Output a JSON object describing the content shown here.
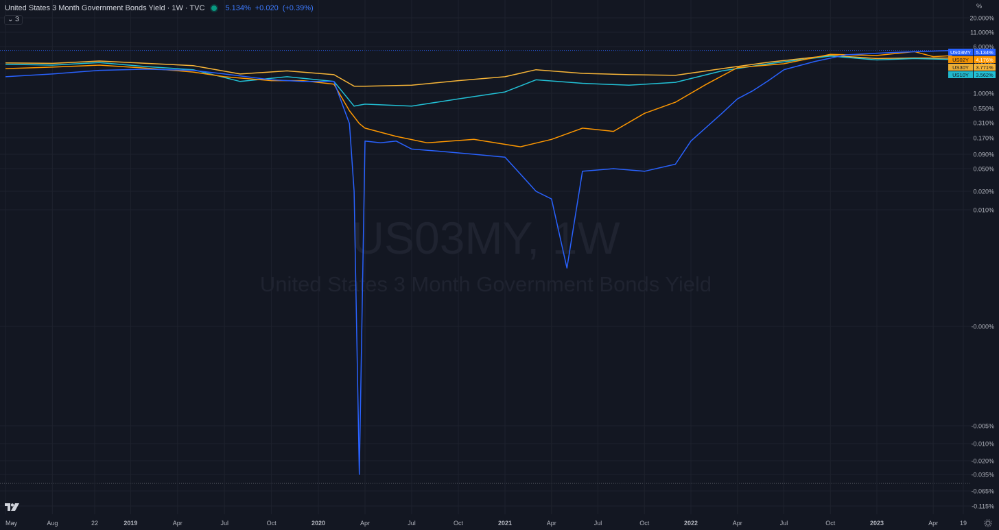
{
  "legend": {
    "title": "United States 3 Month Government Bonds Yield · 1W · TVC",
    "price": "5.134%",
    "change": "+0.020",
    "change_pct": "(+0.39%)",
    "collapse_label": "3"
  },
  "axis_unit": "%",
  "colors": {
    "background": "#131722",
    "grid": "#1e222d",
    "axis_text": "#b2b5be",
    "US03MY": "#2962ff",
    "US02Y": "#ff9800",
    "US30Y": "#f7b538",
    "US10Y": "#22c1d6"
  },
  "chart_data": {
    "type": "line",
    "title": "United States 3 Month Government Bonds Yield",
    "watermark_symbol": "US03MY, 1W",
    "watermark_name": "United States 3 Month Government Bonds Yield",
    "ylabel": "%",
    "y_scale": "log-like",
    "y_ticks": [
      "20.000%",
      "11.000%",
      "6.000%",
      "3.000%",
      "1.000%",
      "0.550%",
      "0.310%",
      "0.170%",
      "0.090%",
      "0.050%",
      "0.020%",
      "0.010%",
      "-0.000%",
      "-0.005%",
      "-0.010%",
      "-0.020%",
      "-0.035%",
      "-0.065%",
      "-0.115%"
    ],
    "x_ticks": [
      "May",
      "Aug",
      "22",
      "2019",
      "Apr",
      "Jul",
      "Oct",
      "2020",
      "Apr",
      "Jul",
      "Oct",
      "2021",
      "Apr",
      "Jul",
      "Oct",
      "2022",
      "Apr",
      "Jul",
      "Oct",
      "2023",
      "Apr",
      "19"
    ],
    "grid": true,
    "series": [
      {
        "name": "US03MY",
        "last": "5.134%",
        "points": [
          [
            "2018-05",
            1.85
          ],
          [
            "2018-08",
            2.05
          ],
          [
            "2018-11",
            2.35
          ],
          [
            "2019-02",
            2.45
          ],
          [
            "2019-05",
            2.35
          ],
          [
            "2019-07",
            2.05
          ],
          [
            "2019-10",
            1.65
          ],
          [
            "2019-12",
            1.55
          ],
          [
            "2020-02",
            1.55
          ],
          [
            "2020-03-01",
            0.3
          ],
          [
            "2020-03-10",
            0.02
          ],
          [
            "2020-03-20",
            -0.035
          ],
          [
            "2020-04-01",
            0.15
          ],
          [
            "2020-05",
            0.14
          ],
          [
            "2020-06",
            0.15
          ],
          [
            "2020-07",
            0.11
          ],
          [
            "2020-09",
            0.1
          ],
          [
            "2020-11",
            0.09
          ],
          [
            "2021-01",
            0.08
          ],
          [
            "2021-02",
            0.04
          ],
          [
            "2021-03",
            0.02
          ],
          [
            "2021-04",
            0.015
          ],
          [
            "2021-05",
            0.005
          ],
          [
            "2021-06",
            0.045
          ],
          [
            "2021-08",
            0.05
          ],
          [
            "2021-10",
            0.045
          ],
          [
            "2021-12",
            0.06
          ],
          [
            "2022-01",
            0.15
          ],
          [
            "2022-03",
            0.45
          ],
          [
            "2022-04",
            0.8
          ],
          [
            "2022-05",
            1.1
          ],
          [
            "2022-06",
            1.6
          ],
          [
            "2022-07",
            2.4
          ],
          [
            "2022-09",
            3.3
          ],
          [
            "2022-11",
            4.3
          ],
          [
            "2023-01",
            4.6
          ],
          [
            "2023-02",
            4.75
          ],
          [
            "2023-05",
            5.134
          ]
        ]
      },
      {
        "name": "US02Y",
        "last": "4.176%",
        "points": [
          [
            "2018-05",
            2.5
          ],
          [
            "2018-08",
            2.65
          ],
          [
            "2018-11",
            2.85
          ],
          [
            "2019-02",
            2.55
          ],
          [
            "2019-05",
            2.2
          ],
          [
            "2019-07",
            1.85
          ],
          [
            "2019-10",
            1.6
          ],
          [
            "2019-12",
            1.6
          ],
          [
            "2020-02",
            1.4
          ],
          [
            "2020-03-01",
            0.5
          ],
          [
            "2020-03-20",
            0.3
          ],
          [
            "2020-04",
            0.25
          ],
          [
            "2020-06",
            0.18
          ],
          [
            "2020-08",
            0.14
          ],
          [
            "2020-11",
            0.16
          ],
          [
            "2021-02",
            0.12
          ],
          [
            "2021-04",
            0.16
          ],
          [
            "2021-06",
            0.25
          ],
          [
            "2021-08",
            0.22
          ],
          [
            "2021-10",
            0.45
          ],
          [
            "2021-12",
            0.7
          ],
          [
            "2022-02",
            1.4
          ],
          [
            "2022-04",
            2.6
          ],
          [
            "2022-07",
            3.0
          ],
          [
            "2022-10",
            4.4
          ],
          [
            "2023-01",
            4.2
          ],
          [
            "2023-03",
            4.9
          ],
          [
            "2023-04",
            4.0
          ],
          [
            "2023-05",
            4.176
          ]
        ]
      },
      {
        "name": "US30Y",
        "last": "3.771%",
        "points": [
          [
            "2018-05",
            3.1
          ],
          [
            "2018-08",
            3.05
          ],
          [
            "2018-11",
            3.35
          ],
          [
            "2019-02",
            3.05
          ],
          [
            "2019-05",
            2.8
          ],
          [
            "2019-08",
            2.05
          ],
          [
            "2019-11",
            2.3
          ],
          [
            "2020-02",
            2.0
          ],
          [
            "2020-03-10",
            1.3
          ],
          [
            "2020-04",
            1.3
          ],
          [
            "2020-07",
            1.35
          ],
          [
            "2020-10",
            1.6
          ],
          [
            "2021-01",
            1.85
          ],
          [
            "2021-03",
            2.4
          ],
          [
            "2021-06",
            2.1
          ],
          [
            "2021-09",
            2.0
          ],
          [
            "2021-12",
            1.95
          ],
          [
            "2022-03",
            2.5
          ],
          [
            "2022-06",
            3.2
          ],
          [
            "2022-10",
            4.2
          ],
          [
            "2023-01",
            3.7
          ],
          [
            "2023-03",
            3.8
          ],
          [
            "2023-05",
            3.771
          ]
        ]
      },
      {
        "name": "US10Y",
        "last": "3.562%",
        "points": [
          [
            "2018-05",
            2.95
          ],
          [
            "2018-08",
            2.85
          ],
          [
            "2018-11",
            3.15
          ],
          [
            "2019-02",
            2.7
          ],
          [
            "2019-05",
            2.4
          ],
          [
            "2019-08",
            1.55
          ],
          [
            "2019-11",
            1.85
          ],
          [
            "2020-02",
            1.55
          ],
          [
            "2020-03-10",
            0.6
          ],
          [
            "2020-04",
            0.65
          ],
          [
            "2020-07",
            0.6
          ],
          [
            "2020-10",
            0.8
          ],
          [
            "2021-01",
            1.05
          ],
          [
            "2021-03",
            1.65
          ],
          [
            "2021-06",
            1.45
          ],
          [
            "2021-09",
            1.35
          ],
          [
            "2021-12",
            1.5
          ],
          [
            "2022-03",
            2.3
          ],
          [
            "2022-06",
            3.0
          ],
          [
            "2022-10",
            4.1
          ],
          [
            "2023-01",
            3.5
          ],
          [
            "2023-03",
            3.7
          ],
          [
            "2023-05",
            3.562
          ]
        ]
      }
    ]
  }
}
